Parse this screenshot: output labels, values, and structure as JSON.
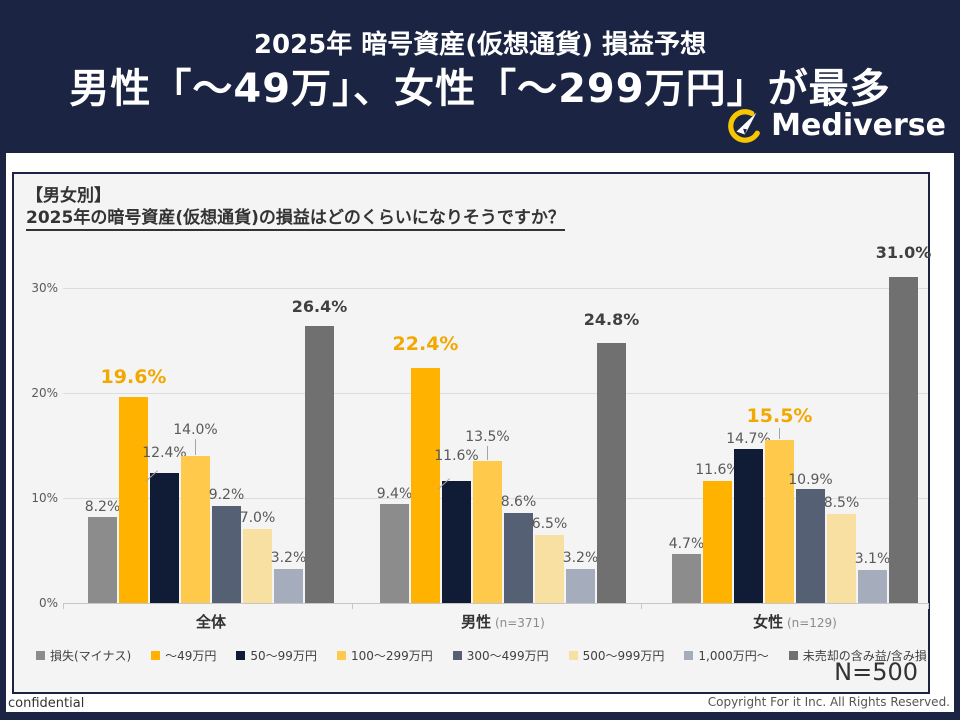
{
  "header": {
    "subtitle": "2025年 暗号資産(仮想通貨) 損益予想",
    "title": "男性「〜49万」、女性「〜299万円」が最多",
    "brand": "Mediverse"
  },
  "panel": {
    "heading": "【男女別】",
    "question": "2025年の暗号資産(仮想通貨)の損益はどのくらいになりそうですか？",
    "sample_size": "N=500"
  },
  "chart_data": {
    "type": "bar",
    "title": "2025年の暗号資産(仮想通貨)の損益はどのくらいになりそうですか？",
    "ylabel": "",
    "xlabel": "",
    "unit": "%",
    "ylim": [
      0,
      31
    ],
    "grid": true,
    "legend_position": "bottom",
    "ytick_values": [
      0,
      10,
      20,
      30
    ],
    "ytick_labels": [
      "0%",
      "10%",
      "20%",
      "30%"
    ],
    "categories": [
      "損失(マイナス)",
      "〜49万円",
      "50〜99万円",
      "100〜299万円",
      "300〜499万円",
      "500〜999万円",
      "1,000万円〜",
      "未売却の含み益/含み損"
    ],
    "series_colors": [
      "#8C8C8C",
      "#FFB300",
      "#101C36",
      "#FFC94C",
      "#556075",
      "#F8DFA2",
      "#A5ACBB",
      "#707070"
    ],
    "groups": [
      {
        "label": "全体",
        "n": "",
        "values": [
          8.2,
          19.6,
          12.4,
          14.0,
          9.2,
          7.0,
          3.2,
          26.4
        ],
        "highlight_index": 1,
        "max_index": 7
      },
      {
        "label": "男性",
        "n": "(n=371)",
        "values": [
          9.4,
          22.4,
          11.6,
          13.5,
          8.6,
          6.5,
          3.2,
          24.8
        ],
        "highlight_index": 1,
        "max_index": 7
      },
      {
        "label": "女性",
        "n": "(n=129)",
        "values": [
          4.7,
          11.6,
          14.7,
          15.5,
          10.9,
          8.5,
          3.1,
          31.0
        ],
        "highlight_index": 3,
        "max_index": 7
      }
    ]
  },
  "colors": {
    "background_navy": "#1B2442",
    "panel_bg": "#F4F4F4",
    "content_bg": "#FFFFFF",
    "highlight_label": "#F2A800",
    "regular_label": "#595959",
    "max_label": "#404040",
    "logo_yellow": "#F7C600"
  },
  "footer": {
    "left": "confidential",
    "right": "Copyright For it Inc. All Rights Reserved."
  }
}
